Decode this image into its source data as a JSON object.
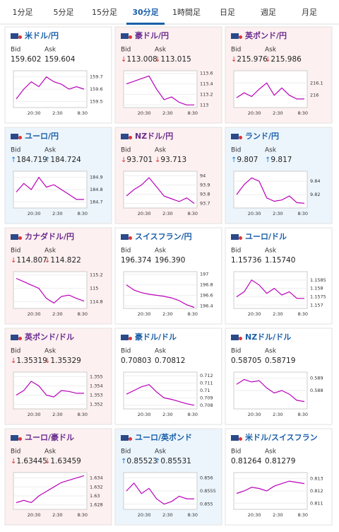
{
  "tabs": [
    "1分足",
    "5分足",
    "15分足",
    "30分足",
    "1時間足",
    "日足",
    "週足",
    "月足"
  ],
  "active_tab": 3,
  "labels": {
    "bid": "Bid",
    "ask": "Ask"
  },
  "pairs": [
    {
      "name": "米ドル/円",
      "trend": "flat",
      "bid_arrow": "",
      "bid": "159.602",
      "ask_arrow": "",
      "ask": "159.604",
      "ylim": [
        159.45,
        159.75
      ],
      "yticks": [
        159.7,
        159.6,
        159.5
      ],
      "xticks": [
        "20:30",
        "2:30",
        "8:30"
      ],
      "closes": [
        159.52,
        159.6,
        159.66,
        159.62,
        159.7,
        159.66,
        159.64,
        159.6,
        159.62,
        159.6
      ]
    },
    {
      "name": "豪ドル/円",
      "trend": "down",
      "bid_arrow": "↓",
      "bid": "113.008",
      "ask_arrow": "↓",
      "ask": "113.015",
      "ylim": [
        112.95,
        113.65
      ],
      "yticks": [
        113.6,
        113.4,
        113.2,
        113
      ],
      "xticks": [
        "20:30",
        "2:30",
        "8:30"
      ],
      "closes": [
        113.4,
        113.45,
        113.5,
        113.55,
        113.3,
        113.1,
        113.15,
        113.05,
        113.0,
        113.0
      ]
    },
    {
      "name": "英ポンド/円",
      "trend": "down",
      "bid_arrow": "↓",
      "bid": "215.976",
      "ask_arrow": "↓",
      "ask": "215.986",
      "ylim": [
        215.9,
        216.2
      ],
      "yticks": [
        216.1,
        216
      ],
      "xticks": [
        "20:30",
        "2:30",
        "8:30"
      ],
      "closes": [
        215.98,
        216.02,
        215.99,
        216.05,
        216.1,
        216.0,
        216.06,
        216.0,
        215.97,
        215.97
      ]
    },
    {
      "name": "ユーロ/円",
      "trend": "up",
      "bid_arrow": "↑",
      "bid": "184.719",
      "ask_arrow": "↑",
      "ask": "184.724",
      "ylim": [
        184.65,
        184.95
      ],
      "yticks": [
        184.9,
        184.8,
        184.7
      ],
      "xticks": [
        "20:30",
        "2:30",
        "8:30"
      ],
      "closes": [
        184.78,
        184.85,
        184.8,
        184.9,
        184.82,
        184.84,
        184.8,
        184.76,
        184.72,
        184.72
      ]
    },
    {
      "name": "NZドル/円",
      "trend": "down",
      "bid_arrow": "↓",
      "bid": "93.701",
      "ask_arrow": "↓",
      "ask": "93.713",
      "ylim": [
        93.65,
        94.05
      ],
      "yticks": [
        94,
        93.9,
        93.8,
        93.7
      ],
      "xticks": [
        "20:30",
        "2:30",
        "8:30"
      ],
      "closes": [
        93.78,
        93.85,
        93.9,
        93.98,
        93.88,
        93.78,
        93.75,
        93.72,
        93.76,
        93.7
      ]
    },
    {
      "name": "ランド/円",
      "trend": "up",
      "bid_arrow": "↑",
      "bid": "9.807",
      "ask_arrow": "↑",
      "ask": "9.817",
      "ylim": [
        9.8,
        9.855
      ],
      "yticks": [
        9.84,
        9.82
      ],
      "xticks": [
        "20:30",
        "2:30",
        "8:30"
      ],
      "closes": [
        9.82,
        9.835,
        9.845,
        9.84,
        9.815,
        9.81,
        9.812,
        9.818,
        9.808,
        9.807
      ]
    },
    {
      "name": "カナダドル/円",
      "trend": "down",
      "bid_arrow": "↓",
      "bid": "114.807",
      "ask_arrow": "↓",
      "ask": "114.822",
      "ylim": [
        114.7,
        115.25
      ],
      "yticks": [
        115.2,
        115,
        114.8
      ],
      "xticks": [
        "20:30",
        "2:30",
        "8:30"
      ],
      "closes": [
        115.15,
        115.1,
        115.05,
        115.0,
        114.85,
        114.78,
        114.88,
        114.9,
        114.85,
        114.81
      ]
    },
    {
      "name": "スイスフラン/円",
      "trend": "flat",
      "bid_arrow": "",
      "bid": "196.374",
      "ask_arrow": "",
      "ask": "196.390",
      "ylim": [
        196.35,
        197.05
      ],
      "yticks": [
        197,
        196.8,
        196.6,
        196.4
      ],
      "xticks": [
        "20:30",
        "2:30",
        "8:30"
      ],
      "closes": [
        196.8,
        196.7,
        196.65,
        196.62,
        196.6,
        196.58,
        196.55,
        196.5,
        196.42,
        196.37
      ]
    },
    {
      "name": "ユーロ/ドル",
      "trend": "flat",
      "bid_arrow": "",
      "bid": "1.15736",
      "ask_arrow": "",
      "ask": "1.15740",
      "ylim": [
        1.1568,
        1.159
      ],
      "yticks": [
        1.1585,
        1.158,
        1.1575,
        1.157
      ],
      "xticks": [
        "20:30",
        "2:30",
        "8:30"
      ],
      "closes": [
        1.1575,
        1.1578,
        1.1585,
        1.1582,
        1.1577,
        1.158,
        1.1576,
        1.1578,
        1.1574,
        1.1574
      ]
    },
    {
      "name": "英ポンド/ドル",
      "trend": "down",
      "bid_arrow": "↓",
      "bid": "1.35319",
      "ask_arrow": "↓",
      "ask": "1.35329",
      "ylim": [
        1.3515,
        1.3555
      ],
      "yticks": [
        1.355,
        1.354,
        1.353,
        1.352
      ],
      "xticks": [
        "20:30",
        "2:30",
        "8:30"
      ],
      "closes": [
        1.353,
        1.3535,
        1.3545,
        1.354,
        1.353,
        1.3528,
        1.3535,
        1.3534,
        1.3532,
        1.3532
      ]
    },
    {
      "name": "豪ドル/ドル",
      "trend": "flat",
      "bid_arrow": "",
      "bid": "0.70803",
      "ask_arrow": "",
      "ask": "0.70812",
      "ylim": [
        0.7075,
        0.7125
      ],
      "yticks": [
        0.712,
        0.711,
        0.71,
        0.709,
        0.708
      ],
      "xticks": [
        "20:30",
        "2:30",
        "8:30"
      ],
      "closes": [
        0.7095,
        0.71,
        0.7105,
        0.7108,
        0.7098,
        0.709,
        0.7088,
        0.7085,
        0.7082,
        0.708
      ]
    },
    {
      "name": "NZドル/ドル",
      "trend": "flat",
      "bid_arrow": "",
      "bid": "0.58705",
      "ask_arrow": "",
      "ask": "0.58719",
      "ylim": [
        0.5865,
        0.5895
      ],
      "yticks": [
        0.589,
        0.588
      ],
      "xticks": [
        "20:30",
        "2:30",
        "8:30"
      ],
      "closes": [
        0.5885,
        0.5889,
        0.5887,
        0.5888,
        0.5882,
        0.5878,
        0.588,
        0.5877,
        0.5872,
        0.5871
      ]
    },
    {
      "name": "ユーロ/豪ドル",
      "trend": "down",
      "bid_arrow": "↓",
      "bid": "1.63445",
      "ask_arrow": "↓",
      "ask": "1.63459",
      "ylim": [
        1.627,
        1.6352
      ],
      "yticks": [
        1.634,
        1.632,
        1.63,
        1.628
      ],
      "xticks": [
        "20:30",
        "2:30",
        "8:30"
      ],
      "closes": [
        1.6285,
        1.629,
        1.6285,
        1.63,
        1.631,
        1.632,
        1.633,
        1.6335,
        1.634,
        1.6345
      ]
    },
    {
      "name": "ユーロ/英ポンド",
      "trend": "up",
      "bid_arrow": "↑",
      "bid": "0.85523",
      "ask_arrow": "↑",
      "ask": "0.85531",
      "ylim": [
        0.8548,
        0.8562
      ],
      "yticks": [
        0.856,
        0.8555,
        0.855
      ],
      "xticks": [
        "20:30",
        "2:30",
        "8:30"
      ],
      "closes": [
        0.8555,
        0.8558,
        0.8554,
        0.8556,
        0.8552,
        0.855,
        0.8551,
        0.8553,
        0.8552,
        0.8552
      ]
    },
    {
      "name": "米ドル/スイスフラン",
      "trend": "flat",
      "bid_arrow": "",
      "bid": "0.81264",
      "ask_arrow": "",
      "ask": "0.81279",
      "ylim": [
        0.8105,
        0.8135
      ],
      "yticks": [
        0.813,
        0.812,
        0.811
      ],
      "xticks": [
        "20:30",
        "2:30",
        "8:30"
      ],
      "closes": [
        0.8118,
        0.812,
        0.8123,
        0.8122,
        0.812,
        0.8124,
        0.8126,
        0.8128,
        0.8127,
        0.8126
      ]
    }
  ]
}
